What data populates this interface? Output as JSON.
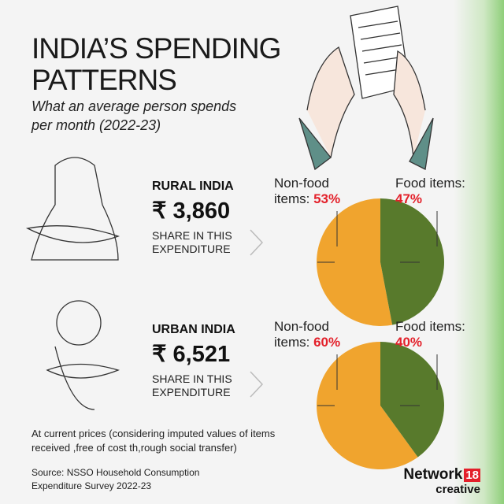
{
  "header": {
    "title": "INDIA’S SPENDING PATTERNS",
    "subtitle": "What an average person spends per month (2022-23)"
  },
  "chart_data": [
    {
      "type": "pie",
      "title": "RURAL INDIA",
      "amount": "₹ 3,860",
      "caption": "SHARE IN THIS EXPENDITURE",
      "categories": [
        "Non-food items:",
        "Food items:"
      ],
      "values": [
        53,
        47
      ],
      "value_labels": [
        "53%",
        "47%"
      ],
      "colors": [
        "#f0a42e",
        "#587a2c"
      ]
    },
    {
      "type": "pie",
      "title": "URBAN INDIA",
      "amount": "₹ 6,521",
      "caption": "SHARE IN THIS EXPENDITURE",
      "categories": [
        "Non-food items:",
        "Food items:"
      ],
      "values": [
        60,
        40
      ],
      "value_labels": [
        "60%",
        "40%"
      ],
      "colors": [
        "#f0a42e",
        "#587a2c"
      ]
    }
  ],
  "note": "At current prices (considering imputed values of items received ,free of cost th,rough social transfer)",
  "source": "Source: NSSO Household Consumption Expenditure Survey 2022-23",
  "logo": {
    "brand": "Network",
    "number": "18",
    "tag": "creative"
  }
}
